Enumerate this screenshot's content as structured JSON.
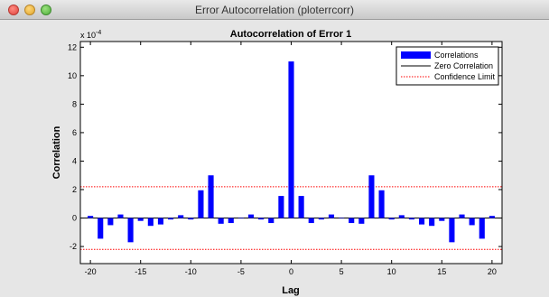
{
  "window": {
    "title": "Error Autocorrelation (ploterrcorr)"
  },
  "chart_data": {
    "type": "bar",
    "title": "Autocorrelation of Error 1",
    "xlabel": "Lag",
    "ylabel": "Correlation",
    "scale_label": "x 10",
    "scale_exponent": "-4",
    "xlim": [
      -21,
      21
    ],
    "ylim": [
      -3.2,
      12.4
    ],
    "xticks": [
      -20,
      -15,
      -10,
      -5,
      0,
      5,
      10,
      15,
      20
    ],
    "yticks": [
      -2,
      0,
      2,
      4,
      6,
      8,
      10,
      12
    ],
    "x": [
      -20,
      -19,
      -18,
      -17,
      -16,
      -15,
      -14,
      -13,
      -12,
      -11,
      -10,
      -9,
      -8,
      -7,
      -6,
      -5,
      -4,
      -3,
      -2,
      -1,
      0,
      1,
      2,
      3,
      4,
      5,
      6,
      7,
      8,
      9,
      10,
      11,
      12,
      13,
      14,
      15,
      16,
      17,
      18,
      19,
      20
    ],
    "series": [
      {
        "name": "Correlations",
        "color": "#0000ff",
        "values": [
          0.15,
          -1.45,
          -0.5,
          0.25,
          -1.7,
          -0.2,
          -0.55,
          -0.45,
          -0.1,
          0.2,
          -0.1,
          1.95,
          3.0,
          -0.4,
          -0.35,
          0.0,
          0.25,
          -0.1,
          -0.35,
          1.55,
          11.0,
          1.55,
          -0.35,
          -0.1,
          0.25,
          0.0,
          -0.35,
          -0.4,
          3.0,
          1.95,
          -0.1,
          0.2,
          -0.1,
          -0.45,
          -0.55,
          -0.2,
          -1.7,
          0.25,
          -0.5,
          -1.45,
          0.15
        ]
      }
    ],
    "zero_line": {
      "name": "Zero Correlation",
      "value": 0,
      "color": "#000000"
    },
    "confidence_limit": {
      "name": "Confidence Limit",
      "values": [
        2.2,
        -2.2
      ],
      "color": "#ff0000"
    },
    "legend_position": "top-right"
  }
}
